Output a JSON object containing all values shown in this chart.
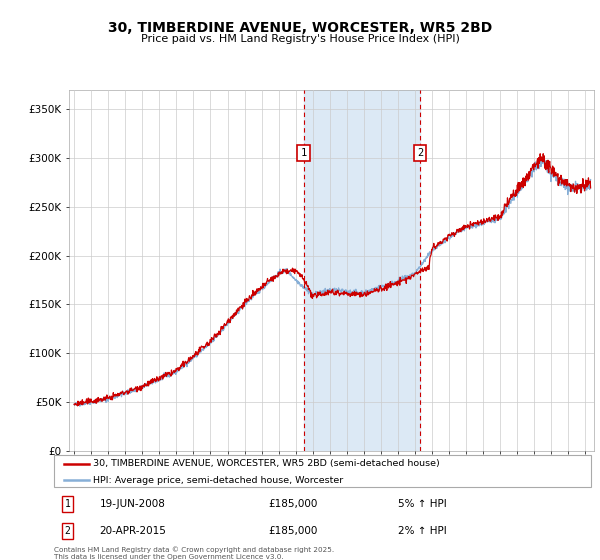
{
  "title1": "30, TIMBERDINE AVENUE, WORCESTER, WR5 2BD",
  "title2": "Price paid vs. HM Land Registry's House Price Index (HPI)",
  "ylabel_ticks": [
    "£0",
    "£50K",
    "£100K",
    "£150K",
    "£200K",
    "£250K",
    "£300K",
    "£350K"
  ],
  "ytick_vals": [
    0,
    50000,
    100000,
    150000,
    200000,
    250000,
    300000,
    350000
  ],
  "ylim": [
    0,
    370000
  ],
  "xlim_start": 1994.7,
  "xlim_end": 2025.5,
  "sale1": {
    "date_x": 2008.47,
    "price": 185000,
    "label": "1",
    "date_str": "19-JUN-2008",
    "hpi_pct": "5%"
  },
  "sale2": {
    "date_x": 2015.3,
    "price": 185000,
    "label": "2",
    "date_str": "20-APR-2015",
    "hpi_pct": "2%"
  },
  "shade_color": "#dce9f5",
  "line1_color": "#cc0000",
  "line2_color": "#87afd7",
  "grid_color": "#cccccc",
  "bg_color": "#ffffff",
  "legend_text1": "30, TIMBERDINE AVENUE, WORCESTER, WR5 2BD (semi-detached house)",
  "legend_text2": "HPI: Average price, semi-detached house, Worcester",
  "footer": "Contains HM Land Registry data © Crown copyright and database right 2025.\nThis data is licensed under the Open Government Licence v3.0.",
  "xtick_years": [
    1995,
    1996,
    1997,
    1998,
    1999,
    2000,
    2001,
    2002,
    2003,
    2004,
    2005,
    2006,
    2007,
    2008,
    2009,
    2010,
    2011,
    2012,
    2013,
    2014,
    2015,
    2016,
    2017,
    2018,
    2019,
    2020,
    2021,
    2022,
    2023,
    2024,
    2025
  ],
  "hpi_anchors_x": [
    1995,
    1997,
    1999,
    2001,
    2003,
    2005,
    2007,
    2007.5,
    2008,
    2009,
    2010,
    2011,
    2012,
    2013,
    2014,
    2015,
    2016,
    2017,
    2018,
    2019,
    2020,
    2020.5,
    2021,
    2021.5,
    2022,
    2022.5,
    2023,
    2023.5,
    2024,
    2024.5,
    2025.3
  ],
  "hpi_anchors_y": [
    47000,
    53000,
    65000,
    81000,
    110000,
    150000,
    182000,
    185000,
    175000,
    160000,
    165000,
    163000,
    162000,
    168000,
    174000,
    182000,
    205000,
    218000,
    228000,
    233000,
    238000,
    252000,
    265000,
    275000,
    290000,
    295000,
    282000,
    275000,
    270000,
    268000,
    273000
  ],
  "prop_anchors_x": [
    1995,
    1997,
    1999,
    2001,
    2003,
    2005,
    2006.5,
    2007,
    2007.3,
    2007.5,
    2008,
    2008.5,
    2009,
    2010,
    2011,
    2012,
    2013,
    2014,
    2015,
    2015.3,
    2015.8,
    2016,
    2017,
    2018,
    2019,
    2020,
    2020.5,
    2021,
    2021.5,
    2022,
    2022.5,
    2023,
    2023.5,
    2024,
    2024.5,
    2025.3
  ],
  "prop_anchors_y": [
    47500,
    54000,
    66000,
    82000,
    112000,
    152000,
    175000,
    180000,
    185000,
    183000,
    185000,
    175000,
    158000,
    163000,
    161000,
    160000,
    166000,
    172000,
    180000,
    185000,
    188000,
    207000,
    220000,
    230000,
    235000,
    240000,
    255000,
    268000,
    278000,
    293000,
    298000,
    285000,
    278000,
    273000,
    270000,
    275000
  ]
}
